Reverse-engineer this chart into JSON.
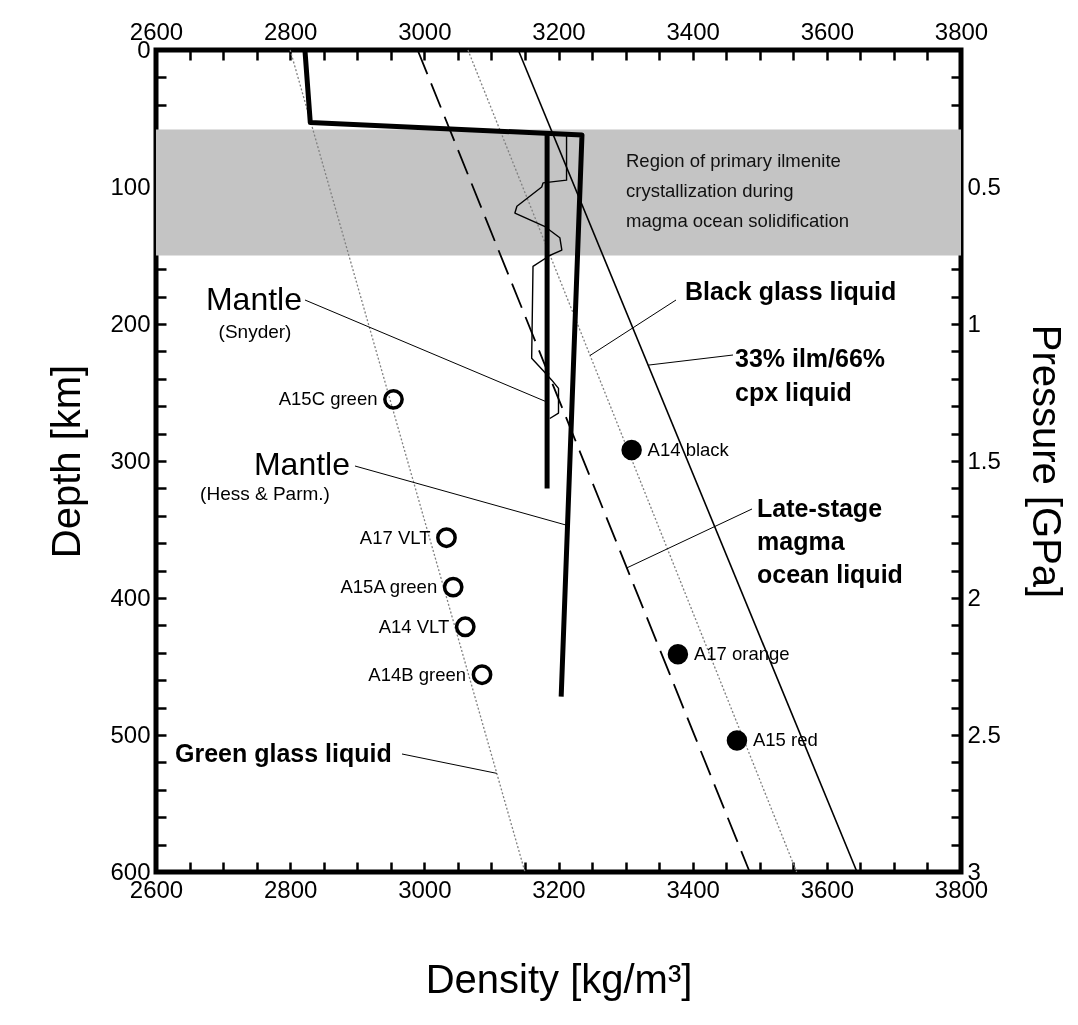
{
  "chart_data": {
    "type": "line",
    "xlabel": "Density [kg/m³]",
    "ylabel": "Depth [km]",
    "y2label": "Pressure [GPa]",
    "xlim": [
      2600,
      3800
    ],
    "ylim": [
      600,
      0
    ],
    "x2lim": [
      2600,
      3800
    ],
    "y2lim": [
      3,
      0
    ],
    "xticks": [
      2600,
      {
        "value": 2650,
        "label": null
      },
      {
        "value": 2700,
        "label": null
      },
      {
        "value": 2750,
        "label": null
      },
      2800,
      {
        "value": 2850,
        "label": null
      },
      {
        "value": 2900,
        "label": null
      },
      {
        "value": 2950,
        "label": null
      },
      3000,
      {
        "value": 3050,
        "label": null
      },
      {
        "value": 3100,
        "label": null
      },
      {
        "value": 3150,
        "label": null
      },
      3200,
      {
        "value": 3250,
        "label": null
      },
      {
        "value": 3300,
        "label": null
      },
      {
        "value": 3350,
        "label": null
      },
      3400,
      {
        "value": 3450,
        "label": null
      },
      {
        "value": 3500,
        "label": null
      },
      {
        "value": 3550,
        "label": null
      },
      3600,
      {
        "value": 3650,
        "label": null
      },
      {
        "value": 3700,
        "label": null
      },
      {
        "value": 3750,
        "label": null
      },
      3800
    ],
    "x2ticks": [
      2600,
      {
        "value": 2650,
        "label": null
      },
      {
        "value": 2700,
        "label": null
      },
      {
        "value": 2750,
        "label": null
      },
      2800,
      {
        "value": 2850,
        "label": null
      },
      {
        "value": 2900,
        "label": null
      },
      {
        "value": 2950,
        "label": null
      },
      3000,
      {
        "value": 3050,
        "label": null
      },
      {
        "value": 3100,
        "label": null
      },
      {
        "value": 3150,
        "label": null
      },
      3200,
      {
        "value": 3250,
        "label": null
      },
      {
        "value": 3300,
        "label": null
      },
      {
        "value": 3350,
        "label": null
      },
      3400,
      {
        "value": 3450,
        "label": null
      },
      {
        "value": 3500,
        "label": null
      },
      {
        "value": 3550,
        "label": null
      },
      3600,
      {
        "value": 3650,
        "label": null
      },
      {
        "value": 3700,
        "label": null
      },
      {
        "value": 3750,
        "label": null
      },
      3800
    ],
    "yticks": [
      0,
      {
        "value": 20,
        "label": null
      },
      {
        "value": 40,
        "label": null
      },
      {
        "value": 60,
        "label": null
      },
      {
        "value": 80,
        "label": null
      },
      100,
      {
        "value": 120,
        "label": null
      },
      {
        "value": 140,
        "label": null
      },
      {
        "value": 160,
        "label": null
      },
      {
        "value": 180,
        "label": null
      },
      200,
      {
        "value": 220,
        "label": null
      },
      {
        "value": 240,
        "label": null
      },
      {
        "value": 260,
        "label": null
      },
      {
        "value": 280,
        "label": null
      },
      300,
      {
        "value": 320,
        "label": null
      },
      {
        "value": 340,
        "label": null
      },
      {
        "value": 360,
        "label": null
      },
      {
        "value": 380,
        "label": null
      },
      400,
      {
        "value": 420,
        "label": null
      },
      {
        "value": 440,
        "label": null
      },
      {
        "value": 460,
        "label": null
      },
      {
        "value": 480,
        "label": null
      },
      500,
      {
        "value": 520,
        "label": null
      },
      {
        "value": 540,
        "label": null
      },
      {
        "value": 560,
        "label": null
      },
      {
        "value": 580,
        "label": null
      },
      600
    ],
    "y2ticks": [
      {
        "value": 0.1,
        "label": null
      },
      {
        "value": 0.2,
        "label": null
      },
      {
        "value": 0.3,
        "label": null
      },
      {
        "value": 0.4,
        "label": null
      },
      0.5,
      {
        "value": 0.6,
        "label": null
      },
      {
        "value": 0.7,
        "label": null
      },
      {
        "value": 0.8,
        "label": null
      },
      {
        "value": 0.9,
        "label": null
      },
      1,
      {
        "value": 1.1,
        "label": null
      },
      {
        "value": 1.2,
        "label": null
      },
      {
        "value": 1.3,
        "label": null
      },
      {
        "value": 1.4,
        "label": null
      },
      1.5,
      {
        "value": 1.6,
        "label": null
      },
      {
        "value": 1.7,
        "label": null
      },
      {
        "value": 1.8,
        "label": null
      },
      {
        "value": 1.9,
        "label": null
      },
      2,
      {
        "value": 2.1,
        "label": null
      },
      {
        "value": 2.2,
        "label": null
      },
      {
        "value": 2.3,
        "label": null
      },
      {
        "value": 2.4,
        "label": null
      },
      2.5,
      {
        "value": 2.6,
        "label": null
      },
      {
        "value": 2.7,
        "label": null
      },
      {
        "value": 2.8,
        "label": null
      },
      {
        "value": 2.9,
        "label": null
      },
      3
    ],
    "series": [
      {
        "color": "#808080",
        "line_style": "dotted",
        "x": [
          2800,
          3150
        ],
        "values": [
          0,
          600
        ]
      },
      {
        "color": "#808080",
        "line_style": "dotted",
        "x": [
          3065,
          3555
        ],
        "values": [
          0,
          600
        ]
      },
      {
        "color": "#000000",
        "line_style": "solid",
        "x": [
          3140,
          3645
        ],
        "values": [
          0,
          600
        ]
      },
      {
        "color": "#000000",
        "line_style": "dashed",
        "x": [
          2990,
          3485
        ],
        "values": [
          0,
          600
        ]
      },
      {
        "color": "#000000",
        "line_style": "solid",
        "x": [
          2822,
          2830,
          3235,
          3204
        ],
        "values": [
          0,
          53,
          62,
          472
        ]
      },
      {
        "color": "#000000",
        "line_style": "solid",
        "x": [
          3183,
          3183
        ],
        "values": [
          62,
          320
        ]
      },
      {
        "color": "#000000",
        "line_style": "solid",
        "x": [
          3212,
          3212,
          3177,
          3175,
          3138,
          3135,
          3180,
          3202,
          3205,
          3187,
          3162,
          3160,
          3177,
          3190,
          3200,
          3200,
          3187
        ],
        "values": [
          62,
          95,
          97,
          100,
          114,
          119,
          129,
          137,
          146,
          150,
          158,
          225,
          234,
          241,
          247,
          265,
          269
        ]
      },
      {
        "type": "scatter",
        "color": "#000000",
        "marker": "circle",
        "x": [
          2954,
          3033,
          3043,
          3061,
          3086
        ],
        "values": [
          255,
          356,
          392,
          421,
          456
        ]
      },
      {
        "type": "scatter",
        "color": "#000000",
        "marker": "circle",
        "x": [
          3309,
          3378,
          3466
        ],
        "values": [
          292,
          441,
          504
        ]
      }
    ],
    "bands": [
      {
        "axis": "y",
        "from": 58,
        "to": 150,
        "color": "#c4c4c4",
        "label": "Region of primary ilmenite crystallization during magma ocean solidification"
      }
    ],
    "annotations": [
      {
        "text": "Mantle (Snyder)",
        "x": 3183,
        "y": 257
      },
      {
        "text": "Mantle (Hess & Parm.)",
        "x": 3213,
        "y": 347
      },
      {
        "text": "Green glass liquid",
        "x": 3108,
        "y": 528
      },
      {
        "text": "Black glass liquid",
        "x": 3247,
        "y": 223
      },
      {
        "text": "33% ilm/66% cpx liquid",
        "x": 3334,
        "y": 230
      },
      {
        "text": "Late-stage magma ocean liquid",
        "x": 3302,
        "y": 378
      },
      {
        "text": "A15C green",
        "x": 2954,
        "y": 255
      },
      {
        "text": "A17 VLT",
        "x": 3033,
        "y": 356
      },
      {
        "text": "A15A green",
        "x": 3043,
        "y": 392
      },
      {
        "text": "A14 VLT",
        "x": 3061,
        "y": 421
      },
      {
        "text": "A14B green",
        "x": 3086,
        "y": 456
      },
      {
        "text": "A14 black",
        "x": 3309,
        "y": 292
      },
      {
        "text": "A17 orange",
        "x": 3378,
        "y": 441
      },
      {
        "text": "A15 red",
        "x": 3466,
        "y": 504
      }
    ]
  }
}
